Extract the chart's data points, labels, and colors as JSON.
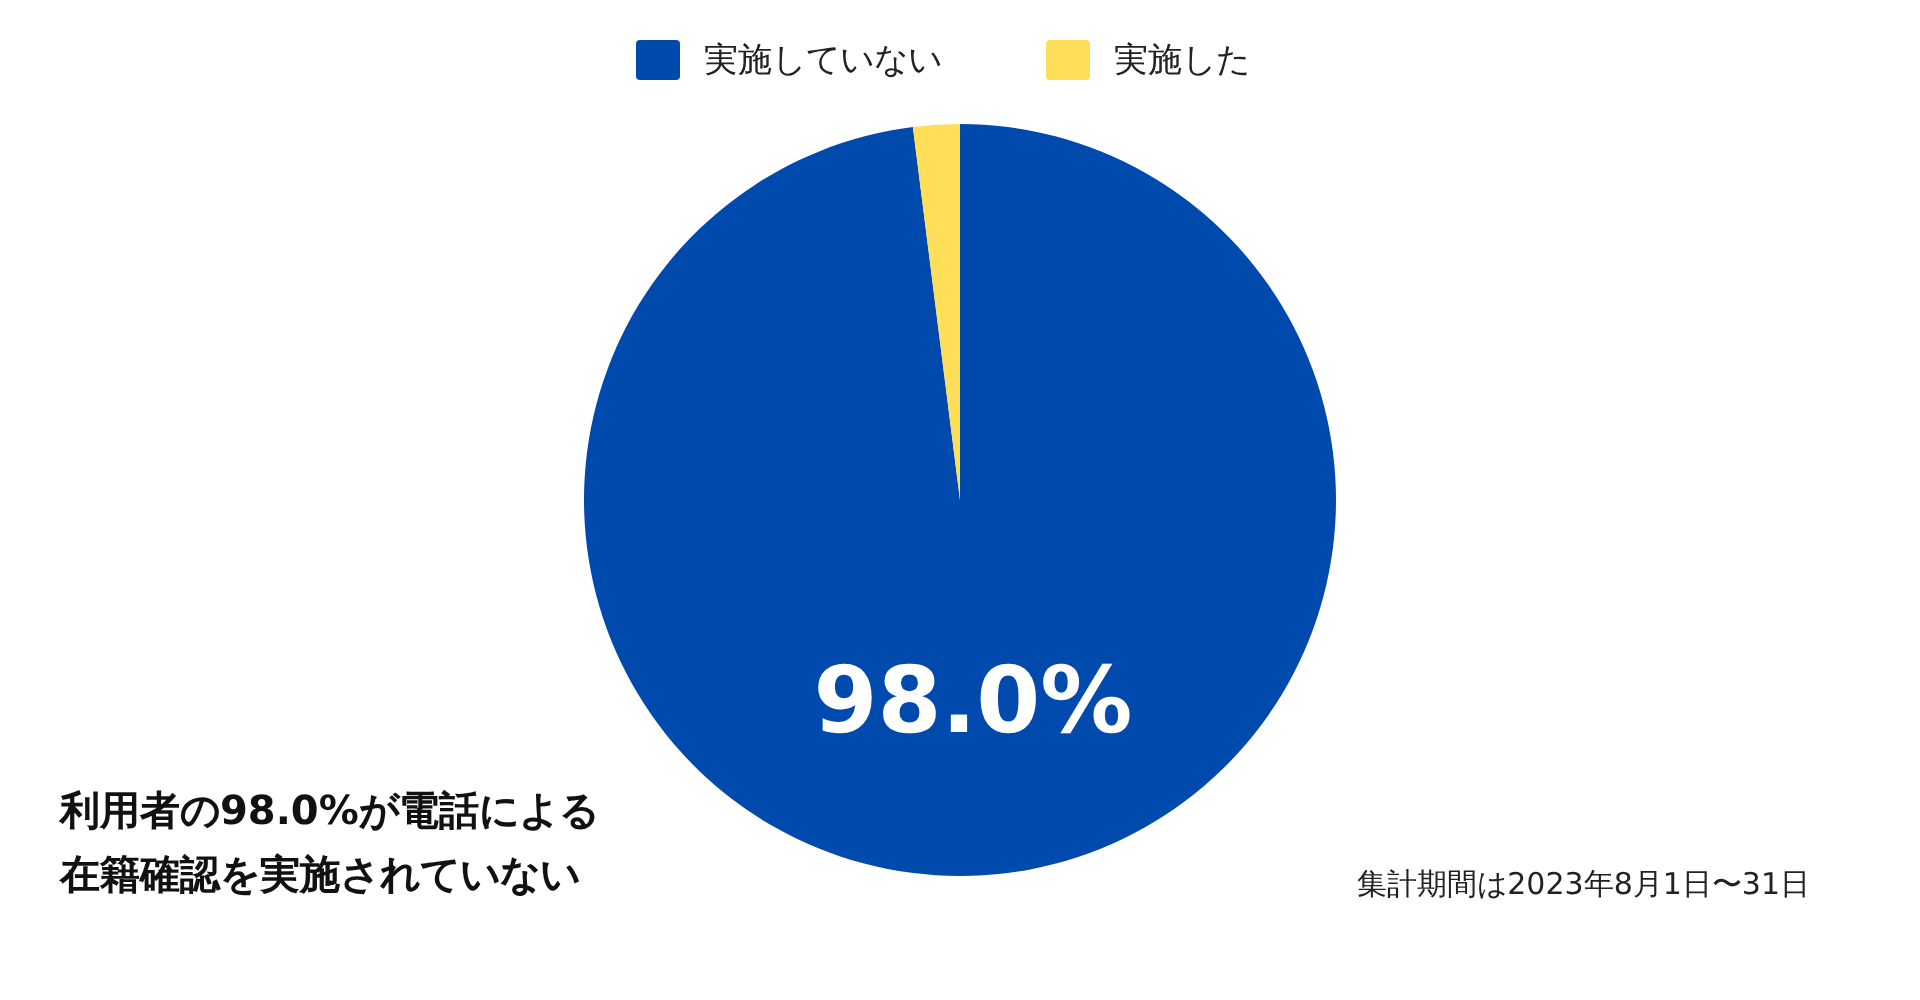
{
  "chart_data": {
    "type": "pie",
    "categories": [
      "実施していない",
      "実施した"
    ],
    "values": [
      98.0,
      2.0
    ],
    "colors": [
      "#004aad",
      "#ffde59"
    ],
    "value_labels": [
      "98.0%",
      null
    ],
    "legend": "top",
    "annotations": [
      "利用者の98.0%が電話による在籍確認を実施されていない",
      "集計期間は2023年8月1日〜31日"
    ]
  }
}
